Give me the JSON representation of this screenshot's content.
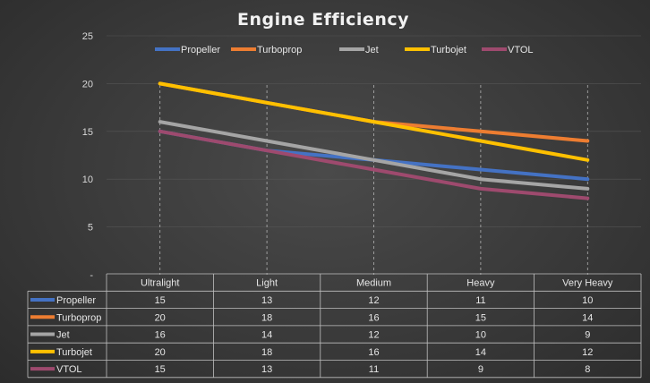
{
  "chart_data": {
    "type": "line",
    "title": "Engine Efficiency",
    "categories": [
      "Ultralight",
      "Light",
      "Medium",
      "Heavy",
      "Very Heavy"
    ],
    "ylim": [
      0,
      25
    ],
    "yticks": [
      0,
      5,
      10,
      15,
      20,
      25
    ],
    "ytick_labels": [
      "-",
      "5",
      "10",
      "15",
      "20",
      "25"
    ],
    "grid": "dashed vertical lines at categories",
    "legend_position": "top",
    "data_table": true,
    "series": [
      {
        "name": "Propeller",
        "color": "#4472c4",
        "values": [
          15,
          13,
          12,
          11,
          10
        ]
      },
      {
        "name": "Turboprop",
        "color": "#ed7d31",
        "values": [
          20,
          18,
          16,
          15,
          14
        ]
      },
      {
        "name": "Jet",
        "color": "#a5a5a5",
        "values": [
          16,
          14,
          12,
          10,
          9
        ]
      },
      {
        "name": "Turbojet",
        "color": "#ffc000",
        "values": [
          20,
          18,
          16,
          14,
          12
        ]
      },
      {
        "name": "VTOL",
        "color": "#9e4a6e",
        "values": [
          15,
          13,
          11,
          9,
          8
        ]
      }
    ]
  }
}
